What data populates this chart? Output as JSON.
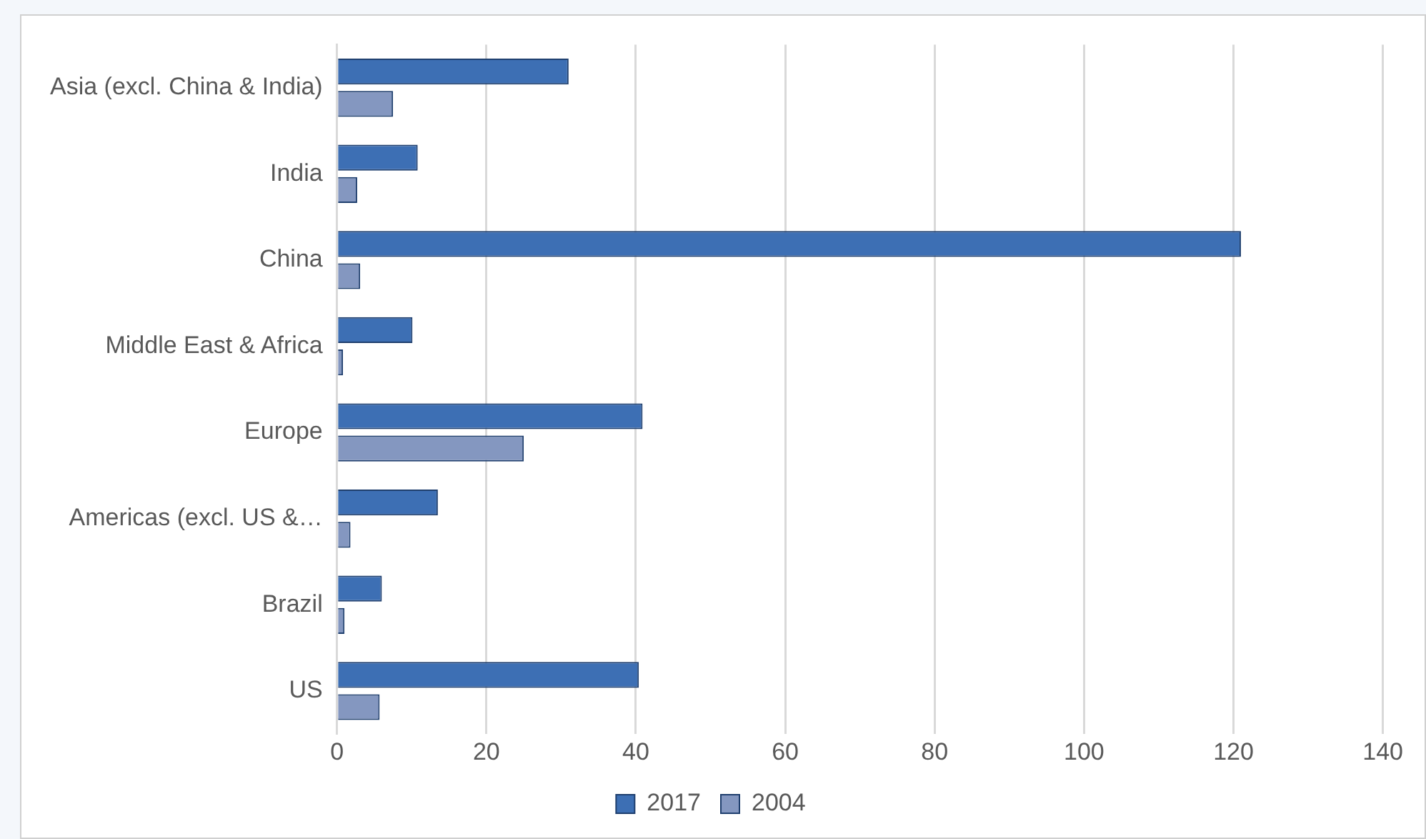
{
  "chart_data": {
    "type": "bar",
    "orientation": "horizontal",
    "categories": [
      "Asia (excl. China & India)",
      "India",
      "China",
      "Middle East & Africa",
      "Europe",
      "Americas (excl. US &…",
      "Brazil",
      "US"
    ],
    "series": [
      {
        "name": "2017",
        "color": "#3d6fb4",
        "values": [
          31,
          10.8,
          121,
          10.1,
          40.9,
          13.5,
          6,
          40.4
        ]
      },
      {
        "name": "2004",
        "color": "#8497c0",
        "values": [
          7.5,
          2.7,
          3.1,
          0.8,
          25,
          1.8,
          1,
          5.7
        ]
      }
    ],
    "xlim": [
      0,
      140
    ],
    "xticks": [
      0,
      20,
      40,
      60,
      80,
      100,
      120,
      140
    ],
    "grid": "x",
    "legend": "bottom"
  }
}
